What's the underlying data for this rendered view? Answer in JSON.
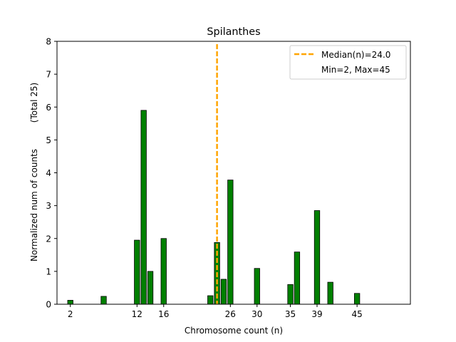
{
  "chart_data": {
    "type": "bar",
    "title": "Spilanthes",
    "xlabel": "Chromosome count (n)",
    "ylabel": "Normalized num of counts",
    "ylabel_right": "(Total 25)",
    "xlim": [
      0,
      53
    ],
    "ylim": [
      0,
      8
    ],
    "yticks": [
      0,
      1,
      2,
      3,
      4,
      5,
      6,
      7,
      8
    ],
    "xticks": [
      2,
      12,
      16,
      26,
      30,
      35,
      39,
      45
    ],
    "bar_color": "#008000",
    "bar_edge_color": "#000000",
    "bars": [
      {
        "x": 2,
        "y": 0.12
      },
      {
        "x": 7,
        "y": 0.24
      },
      {
        "x": 12,
        "y": 1.95
      },
      {
        "x": 13,
        "y": 5.9
      },
      {
        "x": 14,
        "y": 1.0
      },
      {
        "x": 16,
        "y": 2.0
      },
      {
        "x": 23,
        "y": 0.26
      },
      {
        "x": 24,
        "y": 1.88
      },
      {
        "x": 25,
        "y": 0.76
      },
      {
        "x": 26,
        "y": 3.78
      },
      {
        "x": 30,
        "y": 1.09
      },
      {
        "x": 35,
        "y": 0.6
      },
      {
        "x": 36,
        "y": 1.59
      },
      {
        "x": 39,
        "y": 2.85
      },
      {
        "x": 41,
        "y": 0.67
      },
      {
        "x": 45,
        "y": 0.33
      }
    ],
    "median": {
      "value": 24.0,
      "color": "#FFA500"
    },
    "legend": {
      "position": "top-right",
      "entries": [
        "Median(n)=24.0",
        "Min=2, Max=45"
      ]
    }
  }
}
